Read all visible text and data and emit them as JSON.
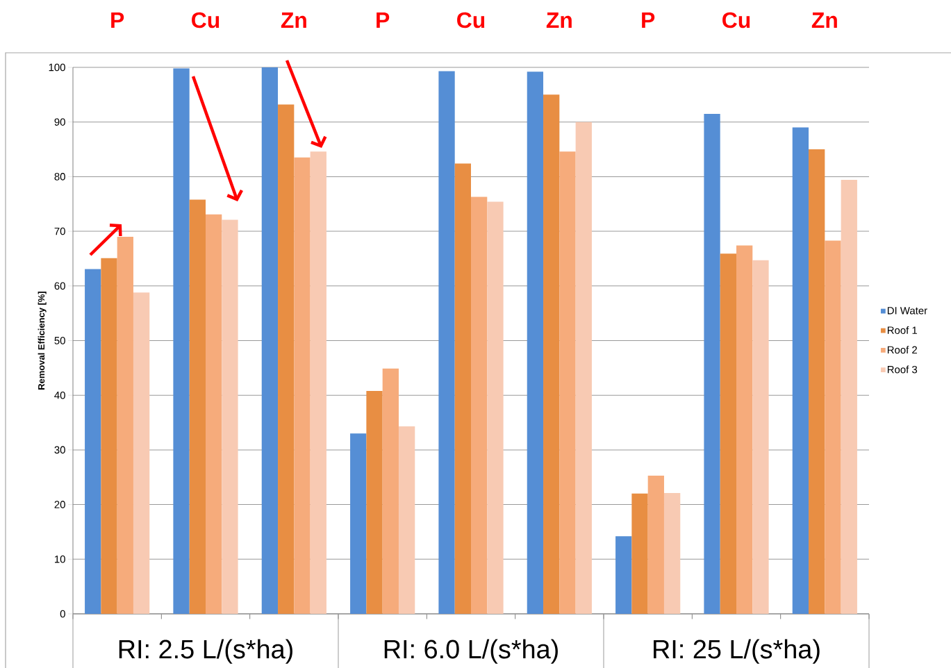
{
  "chart_data": {
    "type": "bar",
    "ylabel": "Removal Efficiency [%]",
    "categories": [
      "P",
      "Cu",
      "Zn",
      "P",
      "Cu",
      "Zn",
      "P",
      "Cu",
      "Zn"
    ],
    "series": [
      {
        "name": "DI Water",
        "color": "#558ed5",
        "values": [
          63.1,
          99.8,
          100,
          33.0,
          99.3,
          99.2,
          14.2,
          91.5,
          89.0
        ]
      },
      {
        "name": "Roof 1",
        "color": "#e88e43",
        "values": [
          65.1,
          75.8,
          93.2,
          40.8,
          82.4,
          95.0,
          22.0,
          65.9,
          85.0
        ]
      },
      {
        "name": "Roof 2",
        "color": "#f6ab7b",
        "values": [
          69.0,
          73.1,
          83.5,
          44.9,
          76.3,
          84.6,
          25.3,
          67.4,
          68.3
        ]
      },
      {
        "name": "Roof 3",
        "color": "#f8cab3",
        "values": [
          58.8,
          72.1,
          84.6,
          34.3,
          75.4,
          90.0,
          22.1,
          64.7,
          79.4
        ]
      }
    ],
    "annotations": [
      "RI: 2.5 L/(s*ha)",
      "RI: 6.0 L/(s*ha)",
      "RI: 25 L/(s*ha)"
    ],
    "ylim": [
      0,
      100
    ],
    "yticks": [
      0,
      10,
      20,
      30,
      40,
      50,
      60,
      70,
      80,
      90,
      100
    ],
    "grid": "y",
    "legend": "right"
  }
}
